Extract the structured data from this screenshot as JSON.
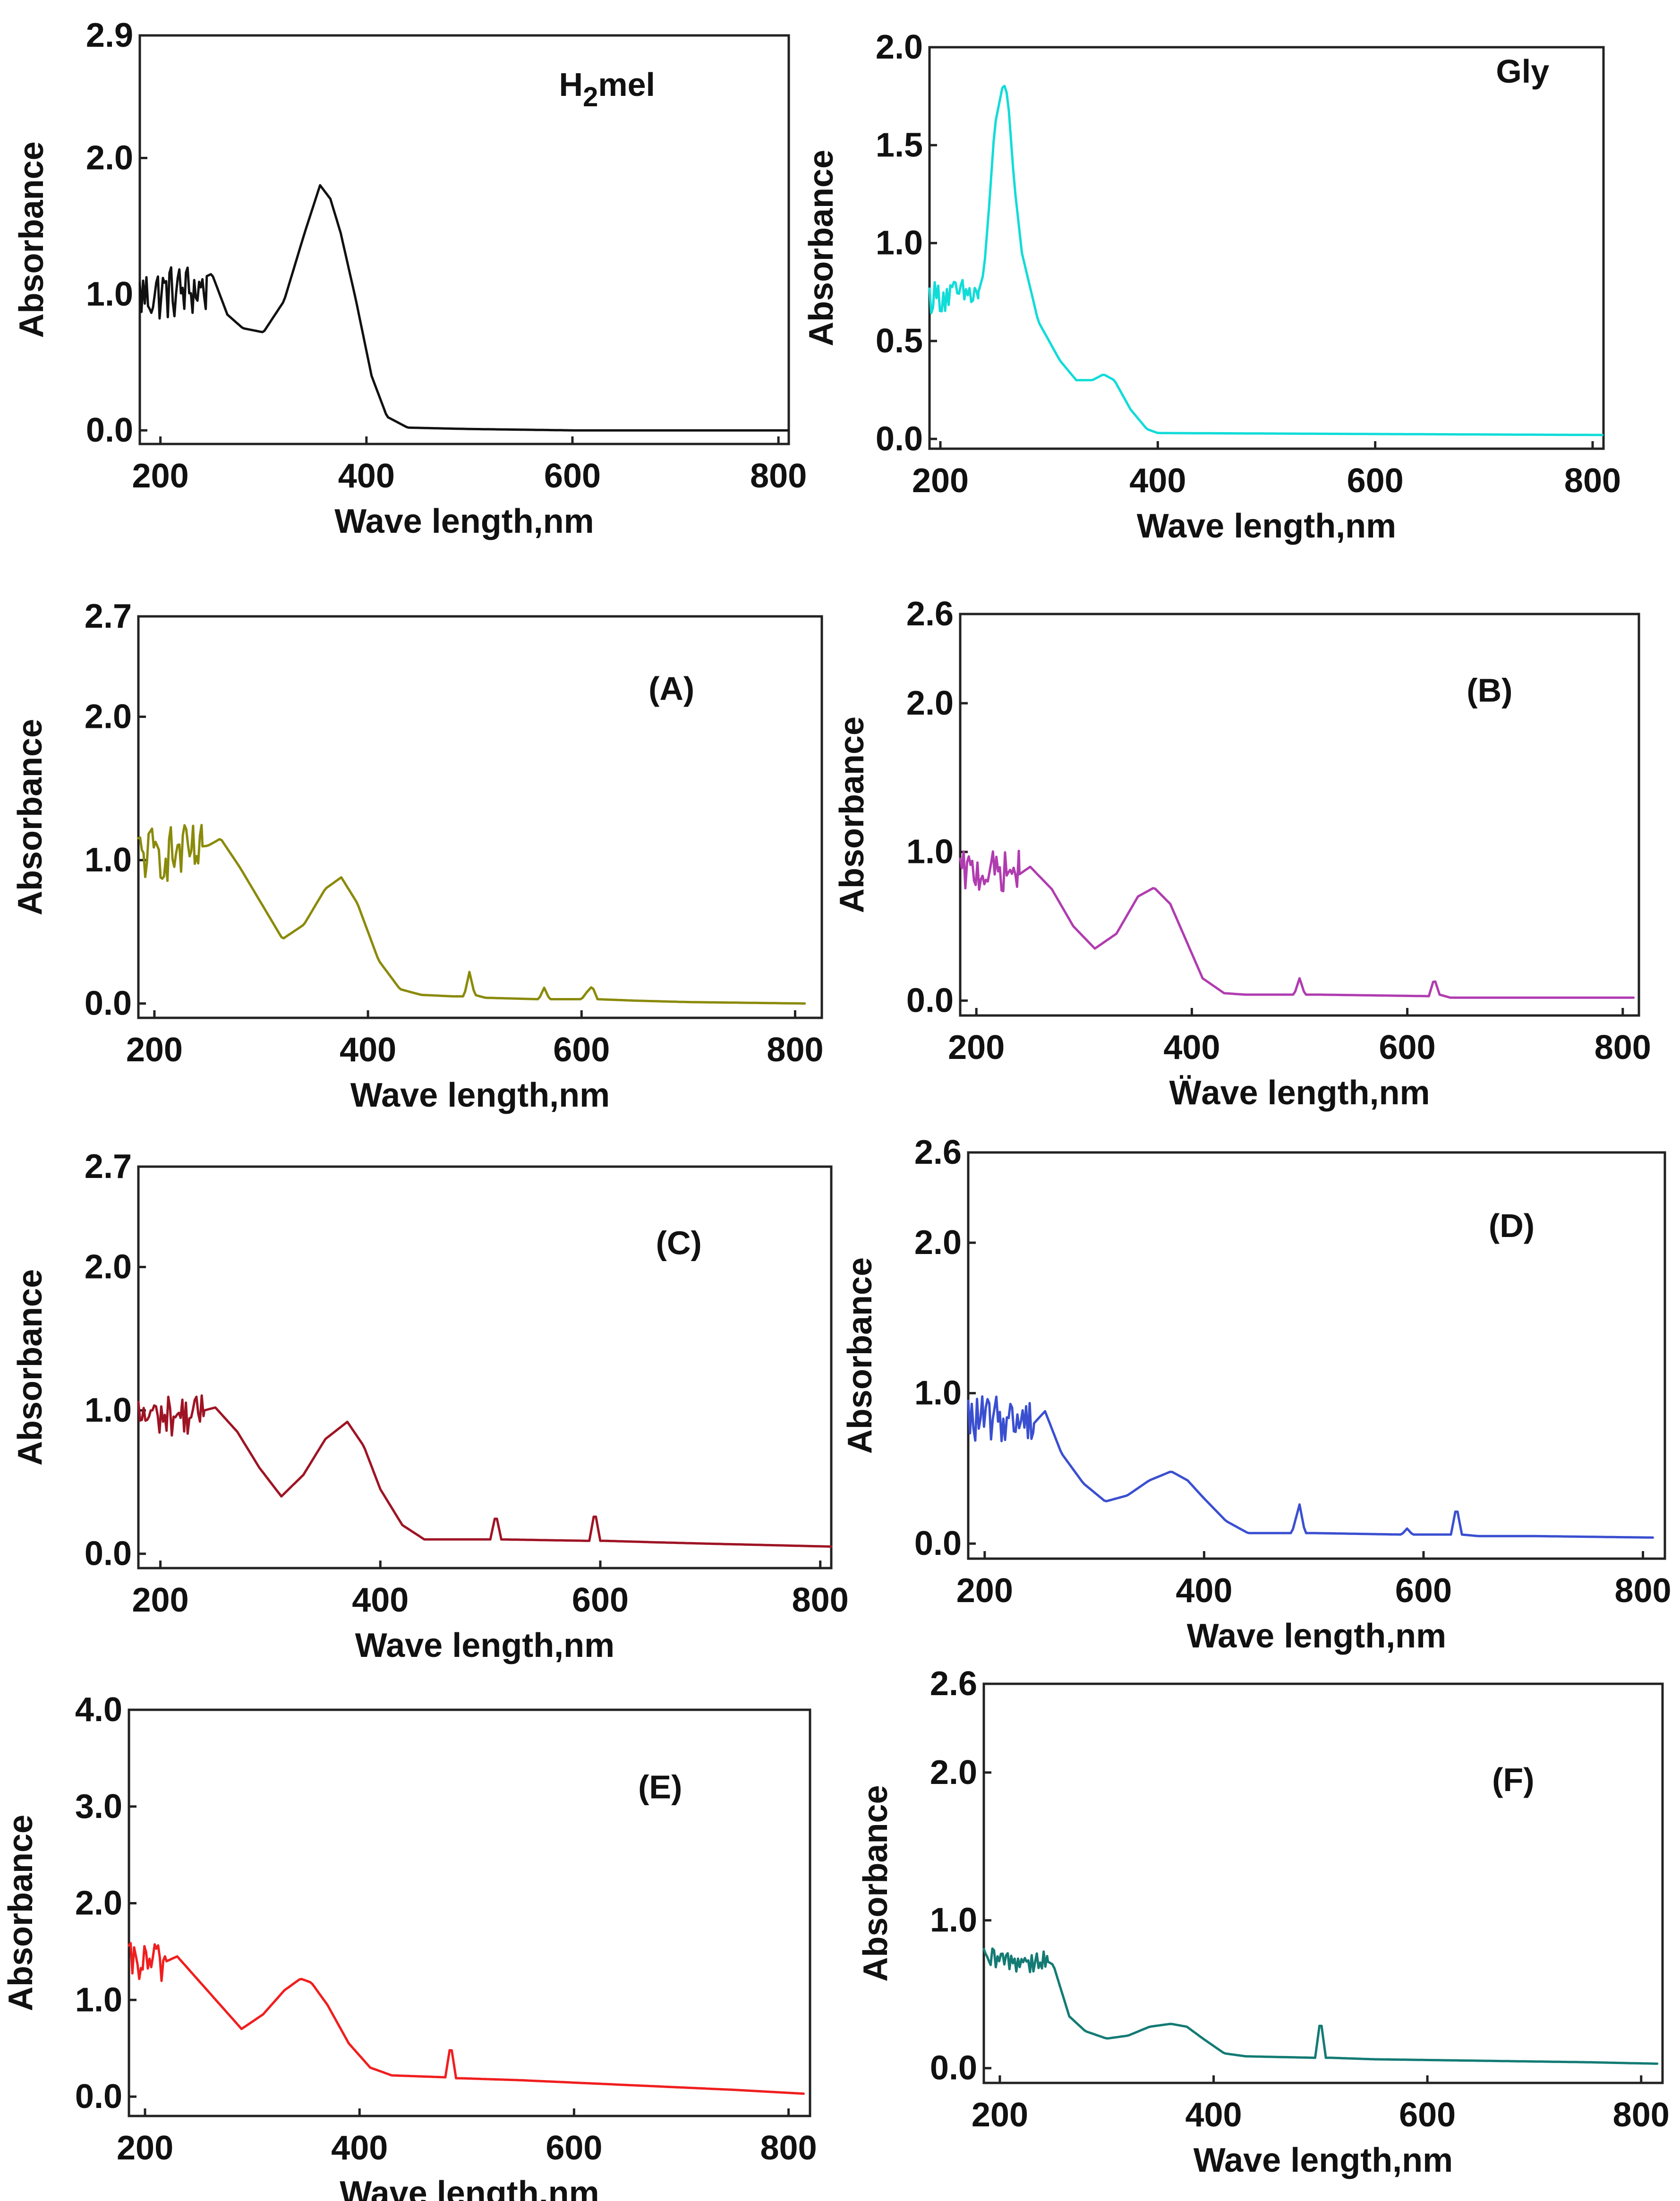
{
  "figure": {
    "type": "uv-vis spectra grid",
    "panel_count": 8
  },
  "chart_data": [
    {
      "id": "h2mel",
      "type": "line",
      "label": "H2mel",
      "label_main": "H",
      "label_sub": "2",
      "label_rest": "mel",
      "color": "#111111",
      "xlabel": "Wave length,nm",
      "ylabel": "Absorbance",
      "xlim": [
        180,
        810
      ],
      "ylim": [
        -0.1,
        2.9
      ],
      "xticks": [
        200,
        400,
        600,
        800
      ],
      "xtick_labels": [
        "200",
        "400",
        "600",
        "800"
      ],
      "yticks": [
        0.0,
        1.0,
        2.0,
        2.9
      ],
      "ytick_labels": [
        "0.0",
        "1.0",
        "2.0",
        "2.9"
      ],
      "noise_region": [
        180,
        245
      ],
      "noise_base": 0.92,
      "noise_amplitude": 0.3,
      "x": [
        180,
        200,
        230,
        250,
        265,
        280,
        300,
        320,
        340,
        355,
        365,
        375,
        390,
        405,
        420,
        440,
        500,
        600,
        700,
        810
      ],
      "y": [
        0.95,
        1.0,
        1.08,
        1.15,
        0.85,
        0.75,
        0.72,
        0.95,
        1.45,
        1.8,
        1.7,
        1.45,
        0.95,
        0.4,
        0.1,
        0.02,
        0.01,
        0.0,
        0.0,
        0.0
      ]
    },
    {
      "id": "gly",
      "type": "line",
      "label": "Gly",
      "color": "#10dcd8",
      "xlabel": "Wave length,nm",
      "ylabel": "Absorbance",
      "xlim": [
        190,
        810
      ],
      "ylim": [
        -0.05,
        2.0
      ],
      "xticks": [
        200,
        400,
        600,
        800
      ],
      "xtick_labels": [
        "200",
        "400",
        "600",
        "800"
      ],
      "yticks": [
        0.0,
        0.5,
        1.0,
        1.5,
        2.0
      ],
      "ytick_labels": [
        "0.0",
        "0.5",
        "1.0",
        "1.5",
        "2.0"
      ],
      "noise_region": [
        190,
        235
      ],
      "noise_base": 0.7,
      "noise_amplitude": 0.12,
      "x": [
        190,
        235,
        240,
        245,
        250,
        258,
        262,
        268,
        275,
        290,
        310,
        325,
        340,
        350,
        360,
        375,
        390,
        400,
        600,
        810
      ],
      "y": [
        0.7,
        0.75,
        0.85,
        1.2,
        1.6,
        1.82,
        1.75,
        1.3,
        0.95,
        0.6,
        0.4,
        0.3,
        0.3,
        0.33,
        0.3,
        0.15,
        0.05,
        0.03,
        0.025,
        0.02
      ]
    },
    {
      "id": "A",
      "type": "line",
      "label": "(A)",
      "color": "#8a8a0a",
      "xlabel": "Wave length,nm",
      "ylabel": "Absorbance",
      "xlim": [
        185,
        825
      ],
      "ylim": [
        -0.1,
        2.7
      ],
      "xticks": [
        200,
        400,
        600,
        800
      ],
      "xtick_labels": [
        "200",
        "400",
        "600",
        "800"
      ],
      "yticks": [
        0.0,
        1.0,
        2.0,
        2.7
      ],
      "ytick_labels": [
        "0.0",
        "1.0",
        "2.0",
        "2.7"
      ],
      "noise_region": [
        185,
        245
      ],
      "noise_base": 0.95,
      "noise_amplitude": 0.28,
      "x": [
        185,
        250,
        262,
        280,
        300,
        320,
        340,
        360,
        375,
        390,
        410,
        430,
        450,
        480,
        490,
        495,
        500,
        510,
        560,
        565,
        570,
        600,
        605,
        610,
        615,
        650,
        700,
        810
      ],
      "y": [
        1.05,
        1.1,
        1.15,
        0.95,
        0.7,
        0.45,
        0.55,
        0.8,
        0.88,
        0.7,
        0.3,
        0.1,
        0.06,
        0.05,
        0.05,
        0.22,
        0.06,
        0.04,
        0.03,
        0.11,
        0.03,
        0.03,
        0.08,
        0.12,
        0.03,
        0.02,
        0.01,
        0.0
      ]
    },
    {
      "id": "B",
      "type": "line",
      "label": "(B)",
      "color": "#b03cb0",
      "xlabel": "Ẅave length,nm",
      "ylabel": "Absorbance",
      "xlim": [
        185,
        815
      ],
      "ylim": [
        -0.1,
        2.6
      ],
      "xticks": [
        200,
        400,
        600,
        800
      ],
      "xtick_labels": [
        "200",
        "400",
        "600",
        "800"
      ],
      "yticks": [
        0.0,
        1.0,
        2.0,
        2.6
      ],
      "ytick_labels": [
        "0.0",
        "1.0",
        "2.0",
        "2.6"
      ],
      "noise_region": [
        185,
        240
      ],
      "noise_base": 0.82,
      "noise_amplitude": 0.2,
      "x": [
        185,
        240,
        250,
        270,
        290,
        310,
        330,
        350,
        365,
        380,
        395,
        410,
        430,
        450,
        495,
        500,
        505,
        520,
        620,
        625,
        630,
        640,
        700,
        810
      ],
      "y": [
        0.82,
        0.85,
        0.9,
        0.75,
        0.5,
        0.35,
        0.45,
        0.7,
        0.76,
        0.65,
        0.4,
        0.15,
        0.05,
        0.04,
        0.04,
        0.15,
        0.04,
        0.04,
        0.03,
        0.15,
        0.04,
        0.02,
        0.02,
        0.02
      ]
    },
    {
      "id": "C",
      "type": "line",
      "label": "(C)",
      "color": "#9e1424",
      "xlabel": "Wave length,nm",
      "ylabel": "Absorbance",
      "xlim": [
        180,
        810
      ],
      "ylim": [
        -0.1,
        2.7
      ],
      "xticks": [
        200,
        400,
        600,
        800
      ],
      "xtick_labels": [
        "200",
        "400",
        "600",
        "800"
      ],
      "yticks": [
        0.0,
        1.0,
        2.0,
        2.7
      ],
      "ytick_labels": [
        "0.0",
        "1.0",
        "2.0",
        "2.7"
      ],
      "noise_region": [
        180,
        240
      ],
      "noise_base": 0.9,
      "noise_amplitude": 0.2,
      "x": [
        180,
        240,
        250,
        270,
        290,
        310,
        330,
        350,
        370,
        385,
        400,
        420,
        440,
        500,
        505,
        510,
        590,
        595,
        600,
        605,
        650,
        700,
        810
      ],
      "y": [
        0.95,
        1.0,
        1.02,
        0.85,
        0.6,
        0.4,
        0.55,
        0.8,
        0.92,
        0.75,
        0.45,
        0.2,
        0.1,
        0.1,
        0.28,
        0.1,
        0.09,
        0.3,
        0.09,
        0.09,
        0.08,
        0.07,
        0.05
      ]
    },
    {
      "id": "D",
      "type": "line",
      "label": "(D)",
      "color": "#3a4fd0",
      "xlabel": "Wave length,nm",
      "ylabel": "Absorbance",
      "xlim": [
        185,
        820
      ],
      "ylim": [
        -0.1,
        2.6
      ],
      "xticks": [
        200,
        400,
        600,
        800
      ],
      "xtick_labels": [
        "200",
        "400",
        "600",
        "800"
      ],
      "yticks": [
        0.0,
        1.0,
        2.0,
        2.6
      ],
      "ytick_labels": [
        "0.0",
        "1.0",
        "2.0",
        "2.6"
      ],
      "noise_region": [
        185,
        245
      ],
      "noise_base": 0.78,
      "noise_amplitude": 0.22,
      "x": [
        185,
        245,
        255,
        270,
        290,
        310,
        330,
        350,
        370,
        385,
        400,
        420,
        440,
        480,
        487,
        492,
        500,
        580,
        585,
        590,
        625,
        630,
        635,
        650,
        700,
        810
      ],
      "y": [
        0.78,
        0.8,
        0.88,
        0.6,
        0.4,
        0.28,
        0.32,
        0.42,
        0.48,
        0.42,
        0.3,
        0.15,
        0.07,
        0.07,
        0.26,
        0.07,
        0.07,
        0.06,
        0.1,
        0.06,
        0.06,
        0.25,
        0.06,
        0.05,
        0.05,
        0.04
      ]
    },
    {
      "id": "E",
      "type": "line",
      "label": "(E)",
      "color": "#f01e1e",
      "xlabel": "Wave length,nm",
      "ylabel": "Absorbance",
      "xlim": [
        185,
        820
      ],
      "ylim": [
        -0.2,
        4.0
      ],
      "xticks": [
        200,
        400,
        600,
        800
      ],
      "xtick_labels": [
        "200",
        "400",
        "600",
        "800"
      ],
      "yticks": [
        0.0,
        1.0,
        2.0,
        3.0,
        4.0
      ],
      "ytick_labels": [
        "0.0",
        "1.0",
        "2.0",
        "3.0",
        "4.0"
      ],
      "noise_region": [
        185,
        220
      ],
      "noise_base": 1.3,
      "noise_amplitude": 0.3,
      "x": [
        185,
        220,
        230,
        250,
        270,
        290,
        310,
        330,
        345,
        355,
        370,
        390,
        410,
        430,
        480,
        485,
        490,
        495,
        550,
        650,
        750,
        815
      ],
      "y": [
        1.35,
        1.4,
        1.45,
        1.2,
        0.95,
        0.7,
        0.85,
        1.1,
        1.22,
        1.18,
        0.95,
        0.55,
        0.3,
        0.22,
        0.2,
        0.55,
        0.19,
        0.19,
        0.17,
        0.12,
        0.07,
        0.03
      ]
    },
    {
      "id": "F",
      "type": "line",
      "label": "(F)",
      "color": "#137b74",
      "xlabel": "Wave length,nm",
      "ylabel": "Absorbance",
      "xlim": [
        185,
        820
      ],
      "ylim": [
        -0.1,
        2.6
      ],
      "xticks": [
        200,
        400,
        600,
        800
      ],
      "xtick_labels": [
        "200",
        "400",
        "600",
        "800"
      ],
      "yticks": [
        0.0,
        1.0,
        2.0,
        2.6
      ],
      "ytick_labels": [
        "0.0",
        "1.0",
        "2.0",
        "2.6"
      ],
      "noise_region": [
        185,
        245
      ],
      "noise_base": 0.7,
      "noise_amplitude": 0.12,
      "x": [
        185,
        245,
        250,
        265,
        280,
        300,
        320,
        340,
        360,
        375,
        390,
        410,
        430,
        495,
        500,
        505,
        510,
        550,
        650,
        750,
        815
      ],
      "y": [
        0.7,
        0.72,
        0.7,
        0.35,
        0.25,
        0.2,
        0.22,
        0.28,
        0.3,
        0.28,
        0.2,
        0.1,
        0.08,
        0.07,
        0.34,
        0.07,
        0.07,
        0.06,
        0.05,
        0.04,
        0.03
      ]
    }
  ]
}
